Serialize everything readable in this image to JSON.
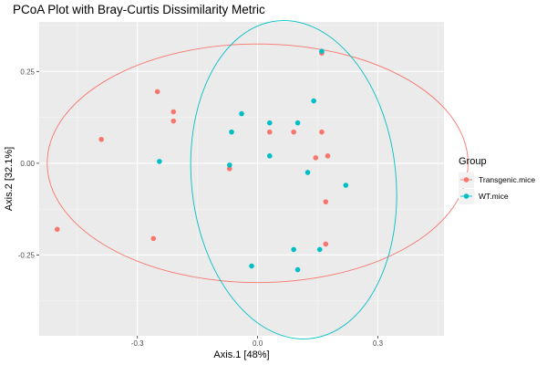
{
  "chart_data": {
    "type": "scatter",
    "title": "PCoA Plot with Bray-Curtis Dissimilarity Metric",
    "xlabel": "Axis.1   [48%]",
    "ylabel": "Axis.2   [32.1%]",
    "xlim": [
      -0.545,
      0.465
    ],
    "ylim": [
      -0.47,
      0.385
    ],
    "x_ticks": [
      -0.3,
      0.0,
      0.3
    ],
    "x_tick_labels": [
      "-0.3",
      "0.0",
      "0.3"
    ],
    "y_ticks": [
      0.25,
      0.0,
      -0.25
    ],
    "y_tick_labels": [
      "0.25",
      "0.00",
      "-0.25"
    ],
    "x_minor_ticks": [
      -0.45,
      -0.15,
      0.15,
      0.45
    ],
    "y_minor_ticks": [
      0.375,
      0.125,
      -0.125,
      -0.375
    ],
    "grid": true,
    "legend_position": "right",
    "legend": {
      "title": "Group"
    },
    "series": [
      {
        "name": "Transgenic.mice",
        "color": "#F8766D",
        "points": [
          [
            -0.5,
            -0.18
          ],
          [
            -0.39,
            0.065
          ],
          [
            -0.26,
            -0.205
          ],
          [
            -0.25,
            0.195
          ],
          [
            -0.21,
            0.14
          ],
          [
            -0.21,
            0.115
          ],
          [
            -0.07,
            -0.015
          ],
          [
            0.03,
            0.085
          ],
          [
            0.09,
            0.085
          ],
          [
            0.145,
            0.015
          ],
          [
            0.16,
            0.085
          ],
          [
            0.175,
            0.02
          ],
          [
            0.17,
            -0.105
          ],
          [
            0.17,
            -0.22
          ],
          [
            0.16,
            0.3
          ]
        ],
        "ellipse": {
          "center": [
            0.0,
            0.0
          ],
          "semi_axes": [
            0.525,
            0.325
          ],
          "rotation_deg": 0
        }
      },
      {
        "name": "WT.mice",
        "color": "#00BFC4",
        "points": [
          [
            -0.245,
            0.005
          ],
          [
            -0.04,
            0.135
          ],
          [
            -0.065,
            0.085
          ],
          [
            -0.07,
            -0.005
          ],
          [
            -0.015,
            -0.28
          ],
          [
            0.03,
            0.11
          ],
          [
            0.03,
            0.02
          ],
          [
            0.1,
            0.11
          ],
          [
            0.14,
            0.17
          ],
          [
            0.125,
            -0.025
          ],
          [
            0.16,
            0.305
          ],
          [
            0.22,
            -0.06
          ],
          [
            0.09,
            -0.235
          ],
          [
            0.1,
            -0.29
          ],
          [
            0.155,
            -0.235
          ]
        ],
        "ellipse": {
          "center": [
            0.09,
            -0.045
          ],
          "semi_axes": [
            0.255,
            0.435
          ],
          "rotation_deg": -6
        }
      }
    ]
  }
}
